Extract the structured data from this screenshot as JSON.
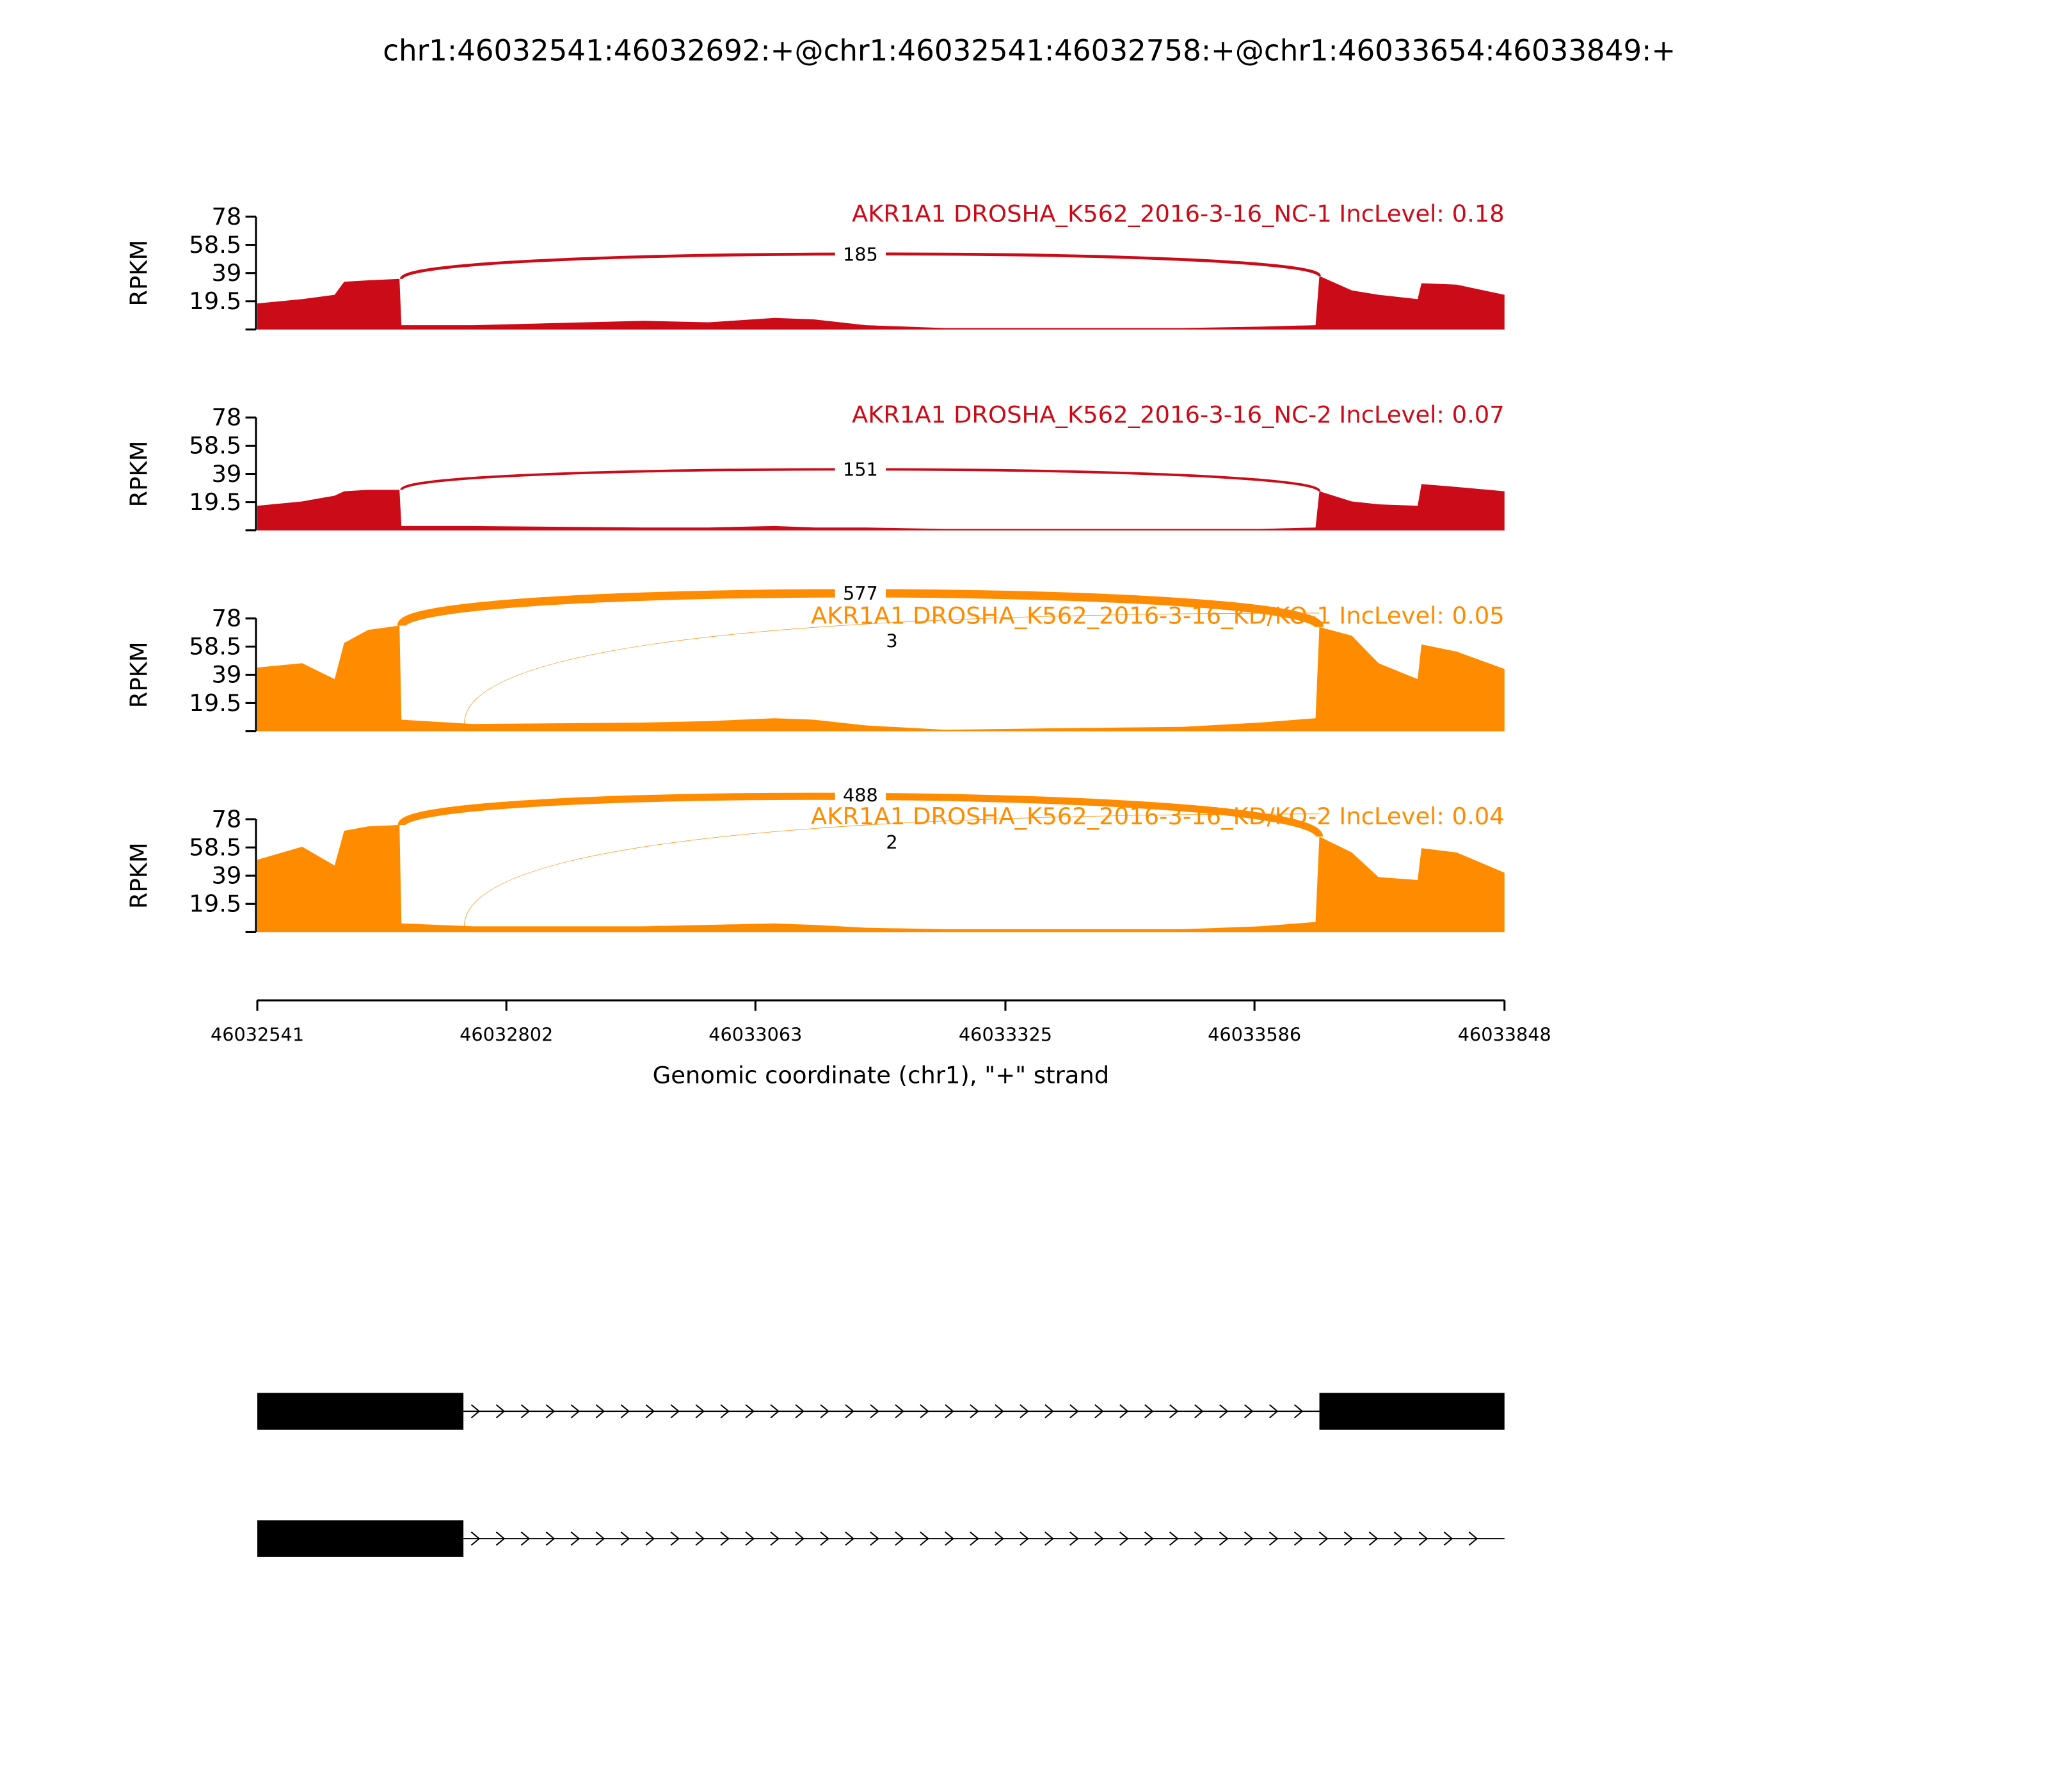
{
  "title": "chr1:46032541:46032692:+@chr1:46032541:46032758:+@chr1:46033654:46033849:+",
  "x_axis": {
    "label": "Genomic coordinate (chr1), \"+\" strand",
    "xlim": [
      46032541,
      46033848
    ],
    "xticks": [
      46032541,
      46032802,
      46033063,
      46033325,
      46033586,
      46033848
    ]
  },
  "chart_data": [
    {
      "type": "area",
      "title": "AKR1A1 DROSHA_K562_2016-3-16_NC-1 IncLevel: 0.18",
      "ylabel": "RPKM",
      "color": "#cc0b18",
      "ylim": [
        0,
        78
      ],
      "yticks": [
        19.5,
        39,
        58.5,
        78
      ],
      "x": [
        46032541,
        46032588,
        46032622,
        46032632,
        46032657,
        46032690,
        46032692,
        46032767,
        46032946,
        46033014,
        46033083,
        46033124,
        46033179,
        46033262,
        46033372,
        46033510,
        46033592,
        46033650,
        46033654,
        46033688,
        46033716,
        46033757,
        46033761,
        46033798,
        46033848
      ],
      "values": [
        18,
        21,
        24,
        33,
        34,
        35,
        3,
        3,
        6,
        5,
        8,
        7,
        3,
        1,
        1,
        1,
        2,
        3,
        37,
        27,
        24,
        21,
        32,
        31,
        24
      ],
      "junctions": [
        {
          "start": 46032692,
          "end": 46033654,
          "count": 185
        }
      ]
    },
    {
      "type": "area",
      "title": "AKR1A1 DROSHA_K562_2016-3-16_NC-2 IncLevel: 0.07",
      "ylabel": "RPKM",
      "color": "#cc0b18",
      "ylim": [
        0,
        78
      ],
      "yticks": [
        19.5,
        39,
        58.5,
        78
      ],
      "x": [
        46032541,
        46032588,
        46032622,
        46032632,
        46032657,
        46032690,
        46032692,
        46032767,
        46032946,
        46033014,
        46033083,
        46033124,
        46033179,
        46033262,
        46033372,
        46033510,
        46033592,
        46033650,
        46033654,
        46033688,
        46033716,
        46033757,
        46033761,
        46033798,
        46033848
      ],
      "values": [
        17,
        20,
        24,
        27,
        28,
        28,
        3,
        3,
        2,
        2,
        3,
        2,
        2,
        1,
        1,
        1,
        1,
        2,
        27,
        20,
        18,
        17,
        32,
        30,
        27
      ],
      "junctions": [
        {
          "start": 46032692,
          "end": 46033654,
          "count": 151
        }
      ]
    },
    {
      "type": "area",
      "title": "AKR1A1 DROSHA_K562_2016-3-16_KD/KO-1 IncLevel: 0.05",
      "ylabel": "RPKM",
      "color": "#ff8c00",
      "ylim": [
        0,
        78
      ],
      "yticks": [
        19.5,
        39,
        58.5,
        78
      ],
      "x": [
        46032541,
        46032588,
        46032622,
        46032632,
        46032657,
        46032690,
        46032692,
        46032767,
        46032946,
        46033014,
        46033083,
        46033124,
        46033179,
        46033262,
        46033372,
        46033510,
        46033592,
        46033650,
        46033654,
        46033688,
        46033716,
        46033757,
        46033761,
        46033798,
        46033848
      ],
      "values": [
        44,
        47,
        36,
        61,
        70,
        73,
        8,
        5,
        6,
        7,
        9,
        8,
        4,
        1,
        2,
        3,
        6,
        9,
        72,
        66,
        47,
        36,
        60,
        55,
        43
      ],
      "junctions": [
        {
          "start": 46032692,
          "end": 46033654,
          "count": 577
        },
        {
          "start": 46032758,
          "end": 46033654,
          "count": 3
        }
      ]
    },
    {
      "type": "area",
      "title": "AKR1A1 DROSHA_K562_2016-3-16_KD/KO-2 IncLevel: 0.04",
      "ylabel": "RPKM",
      "color": "#ff8c00",
      "ylim": [
        0,
        78
      ],
      "yticks": [
        19.5,
        39,
        58.5,
        78
      ],
      "x": [
        46032541,
        46032588,
        46032622,
        46032632,
        46032657,
        46032690,
        46032692,
        46032767,
        46032946,
        46033014,
        46033083,
        46033124,
        46033179,
        46033262,
        46033372,
        46033510,
        46033592,
        46033650,
        46033654,
        46033688,
        46033716,
        46033757,
        46033761,
        46033798,
        46033848
      ],
      "values": [
        50,
        59,
        46,
        70,
        73,
        74,
        6,
        4,
        4,
        5,
        6,
        5,
        3,
        2,
        2,
        2,
        4,
        7,
        66,
        55,
        38,
        36,
        58,
        55,
        41
      ],
      "junctions": [
        {
          "start": 46032692,
          "end": 46033654,
          "count": 488
        },
        {
          "start": 46032758,
          "end": 46033654,
          "count": 2
        }
      ]
    }
  ]
}
